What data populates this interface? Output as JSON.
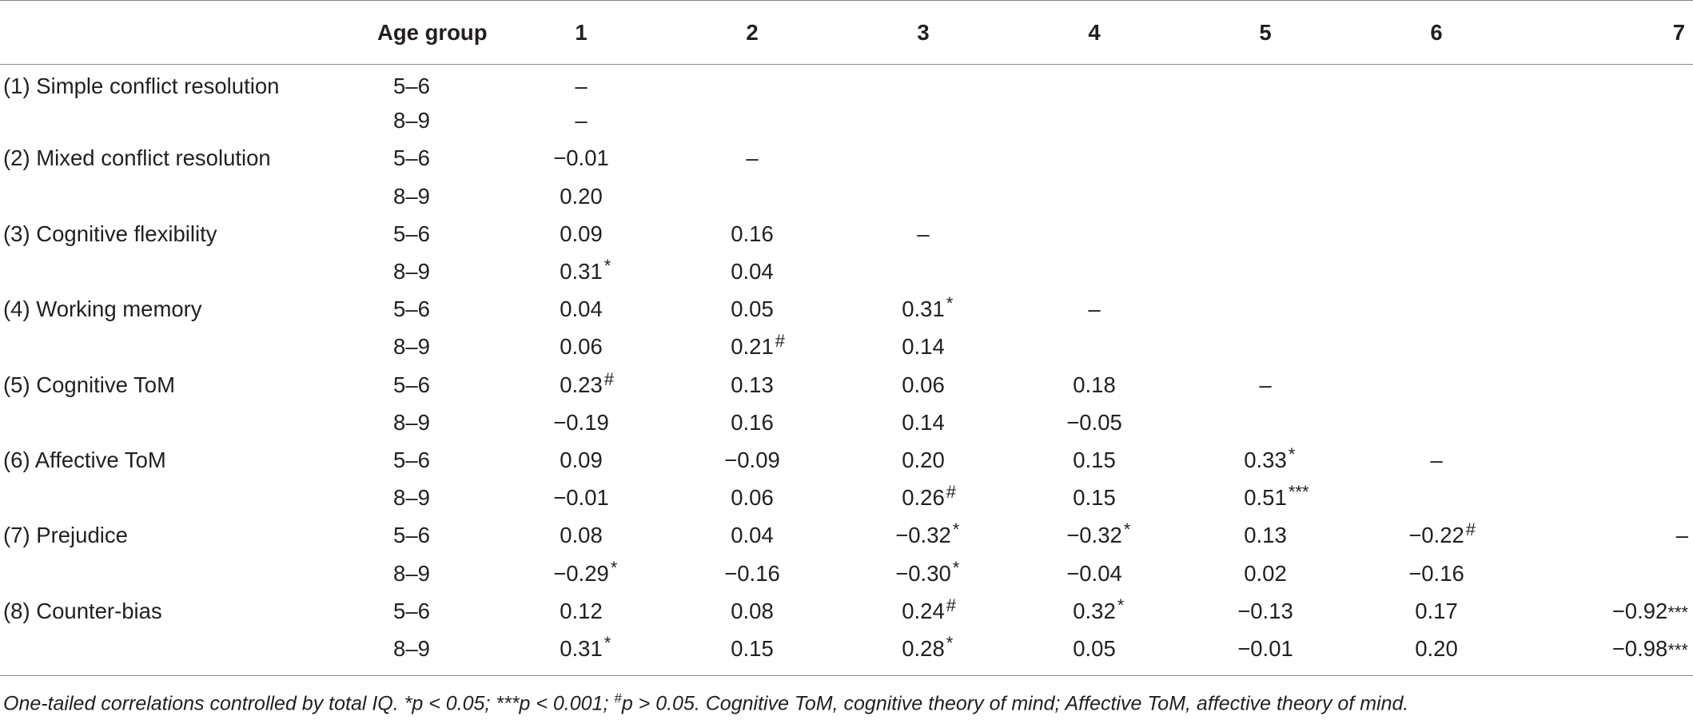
{
  "table": {
    "headers": [
      "",
      "Age group",
      "1",
      "2",
      "3",
      "4",
      "5",
      "6",
      "7"
    ],
    "rows": [
      {
        "variable": "(1) Simple conflict resolution",
        "age": "5–6",
        "cells": [
          {
            "v": "–",
            "m": ""
          },
          {
            "v": "",
            "m": ""
          },
          {
            "v": "",
            "m": ""
          },
          {
            "v": "",
            "m": ""
          },
          {
            "v": "",
            "m": ""
          },
          {
            "v": "",
            "m": ""
          },
          {
            "v": "",
            "m": ""
          }
        ]
      },
      {
        "variable": "",
        "age": "8–9",
        "cells": [
          {
            "v": "–",
            "m": ""
          },
          {
            "v": "",
            "m": ""
          },
          {
            "v": "",
            "m": ""
          },
          {
            "v": "",
            "m": ""
          },
          {
            "v": "",
            "m": ""
          },
          {
            "v": "",
            "m": ""
          },
          {
            "v": "",
            "m": ""
          }
        ]
      },
      {
        "variable": "(2) Mixed conflict resolution",
        "age": "5–6",
        "cells": [
          {
            "v": "−0.01",
            "m": ""
          },
          {
            "v": "–",
            "m": ""
          },
          {
            "v": "",
            "m": ""
          },
          {
            "v": "",
            "m": ""
          },
          {
            "v": "",
            "m": ""
          },
          {
            "v": "",
            "m": ""
          },
          {
            "v": "",
            "m": ""
          }
        ]
      },
      {
        "variable": "",
        "age": "8–9",
        "cells": [
          {
            "v": "0.20",
            "m": ""
          },
          {
            "v": "",
            "m": ""
          },
          {
            "v": "",
            "m": ""
          },
          {
            "v": "",
            "m": ""
          },
          {
            "v": "",
            "m": ""
          },
          {
            "v": "",
            "m": ""
          },
          {
            "v": "",
            "m": ""
          }
        ]
      },
      {
        "variable": "(3) Cognitive flexibility",
        "age": "5–6",
        "cells": [
          {
            "v": "0.09",
            "m": ""
          },
          {
            "v": "0.16",
            "m": ""
          },
          {
            "v": "–",
            "m": ""
          },
          {
            "v": "",
            "m": ""
          },
          {
            "v": "",
            "m": ""
          },
          {
            "v": "",
            "m": ""
          },
          {
            "v": "",
            "m": ""
          }
        ]
      },
      {
        "variable": "",
        "age": "8–9",
        "cells": [
          {
            "v": "0.31",
            "m": "*"
          },
          {
            "v": "0.04",
            "m": ""
          },
          {
            "v": "",
            "m": ""
          },
          {
            "v": "",
            "m": ""
          },
          {
            "v": "",
            "m": ""
          },
          {
            "v": "",
            "m": ""
          },
          {
            "v": "",
            "m": ""
          }
        ]
      },
      {
        "variable": "(4) Working memory",
        "age": "5–6",
        "cells": [
          {
            "v": "0.04",
            "m": ""
          },
          {
            "v": "0.05",
            "m": ""
          },
          {
            "v": "0.31",
            "m": "*"
          },
          {
            "v": "–",
            "m": ""
          },
          {
            "v": "",
            "m": ""
          },
          {
            "v": "",
            "m": ""
          },
          {
            "v": "",
            "m": ""
          }
        ]
      },
      {
        "variable": "",
        "age": "8–9",
        "cells": [
          {
            "v": "0.06",
            "m": ""
          },
          {
            "v": "0.21",
            "m": "#"
          },
          {
            "v": "0.14",
            "m": ""
          },
          {
            "v": "",
            "m": ""
          },
          {
            "v": "",
            "m": ""
          },
          {
            "v": "",
            "m": ""
          },
          {
            "v": "",
            "m": ""
          }
        ]
      },
      {
        "variable": "(5) Cognitive ToM",
        "age": "5–6",
        "cells": [
          {
            "v": "0.23",
            "m": "#"
          },
          {
            "v": "0.13",
            "m": ""
          },
          {
            "v": "0.06",
            "m": ""
          },
          {
            "v": "0.18",
            "m": ""
          },
          {
            "v": "–",
            "m": ""
          },
          {
            "v": "",
            "m": ""
          },
          {
            "v": "",
            "m": ""
          }
        ]
      },
      {
        "variable": "",
        "age": "8–9",
        "cells": [
          {
            "v": "−0.19",
            "m": ""
          },
          {
            "v": "0.16",
            "m": ""
          },
          {
            "v": "0.14",
            "m": ""
          },
          {
            "v": "−0.05",
            "m": ""
          },
          {
            "v": "",
            "m": ""
          },
          {
            "v": "",
            "m": ""
          },
          {
            "v": "",
            "m": ""
          }
        ]
      },
      {
        "variable": "(6) Affective ToM",
        "age": "5–6",
        "cells": [
          {
            "v": "0.09",
            "m": ""
          },
          {
            "v": "−0.09",
            "m": ""
          },
          {
            "v": "0.20",
            "m": ""
          },
          {
            "v": "0.15",
            "m": ""
          },
          {
            "v": "0.33",
            "m": "*"
          },
          {
            "v": "–",
            "m": ""
          },
          {
            "v": "",
            "m": ""
          }
        ]
      },
      {
        "variable": "",
        "age": "8–9",
        "cells": [
          {
            "v": "−0.01",
            "m": ""
          },
          {
            "v": "0.06",
            "m": ""
          },
          {
            "v": "0.26",
            "m": "#"
          },
          {
            "v": "0.15",
            "m": ""
          },
          {
            "v": "0.51",
            "m": "***"
          },
          {
            "v": "",
            "m": ""
          },
          {
            "v": "",
            "m": ""
          }
        ]
      },
      {
        "variable": "(7) Prejudice",
        "age": "5–6",
        "cells": [
          {
            "v": "0.08",
            "m": ""
          },
          {
            "v": "0.04",
            "m": ""
          },
          {
            "v": "−0.32",
            "m": "*"
          },
          {
            "v": "−0.32",
            "m": "*"
          },
          {
            "v": "0.13",
            "m": ""
          },
          {
            "v": "−0.22",
            "m": "#"
          },
          {
            "v": "–",
            "m": ""
          }
        ]
      },
      {
        "variable": "",
        "age": "8–9",
        "cells": [
          {
            "v": "−0.29",
            "m": "*"
          },
          {
            "v": "−0.16",
            "m": ""
          },
          {
            "v": "−0.30",
            "m": "*"
          },
          {
            "v": "−0.04",
            "m": ""
          },
          {
            "v": "0.02",
            "m": ""
          },
          {
            "v": "−0.16",
            "m": ""
          },
          {
            "v": "",
            "m": ""
          }
        ]
      },
      {
        "variable": "(8) Counter-bias",
        "age": "5–6",
        "cells": [
          {
            "v": "0.12",
            "m": ""
          },
          {
            "v": "0.08",
            "m": ""
          },
          {
            "v": "0.24",
            "m": "#"
          },
          {
            "v": "0.32",
            "m": "*"
          },
          {
            "v": "−0.13",
            "m": ""
          },
          {
            "v": "0.17",
            "m": ""
          },
          {
            "v": "−0.92",
            "m": "***"
          }
        ]
      },
      {
        "variable": "",
        "age": "8–9",
        "cells": [
          {
            "v": "0.31",
            "m": "*"
          },
          {
            "v": "0.15",
            "m": ""
          },
          {
            "v": "0.28",
            "m": "*"
          },
          {
            "v": "0.05",
            "m": ""
          },
          {
            "v": "−0.01",
            "m": ""
          },
          {
            "v": "0.20",
            "m": ""
          },
          {
            "v": "−0.98",
            "m": "***"
          }
        ]
      }
    ]
  },
  "footnote": {
    "part1": "One-tailed correlations controlled by total IQ. *p < 0.05; ***p < 0.001; ",
    "hash": "#",
    "part2": "p > 0.05. Cognitive ToM, cognitive theory of mind; Affective ToM, affective theory of mind."
  }
}
